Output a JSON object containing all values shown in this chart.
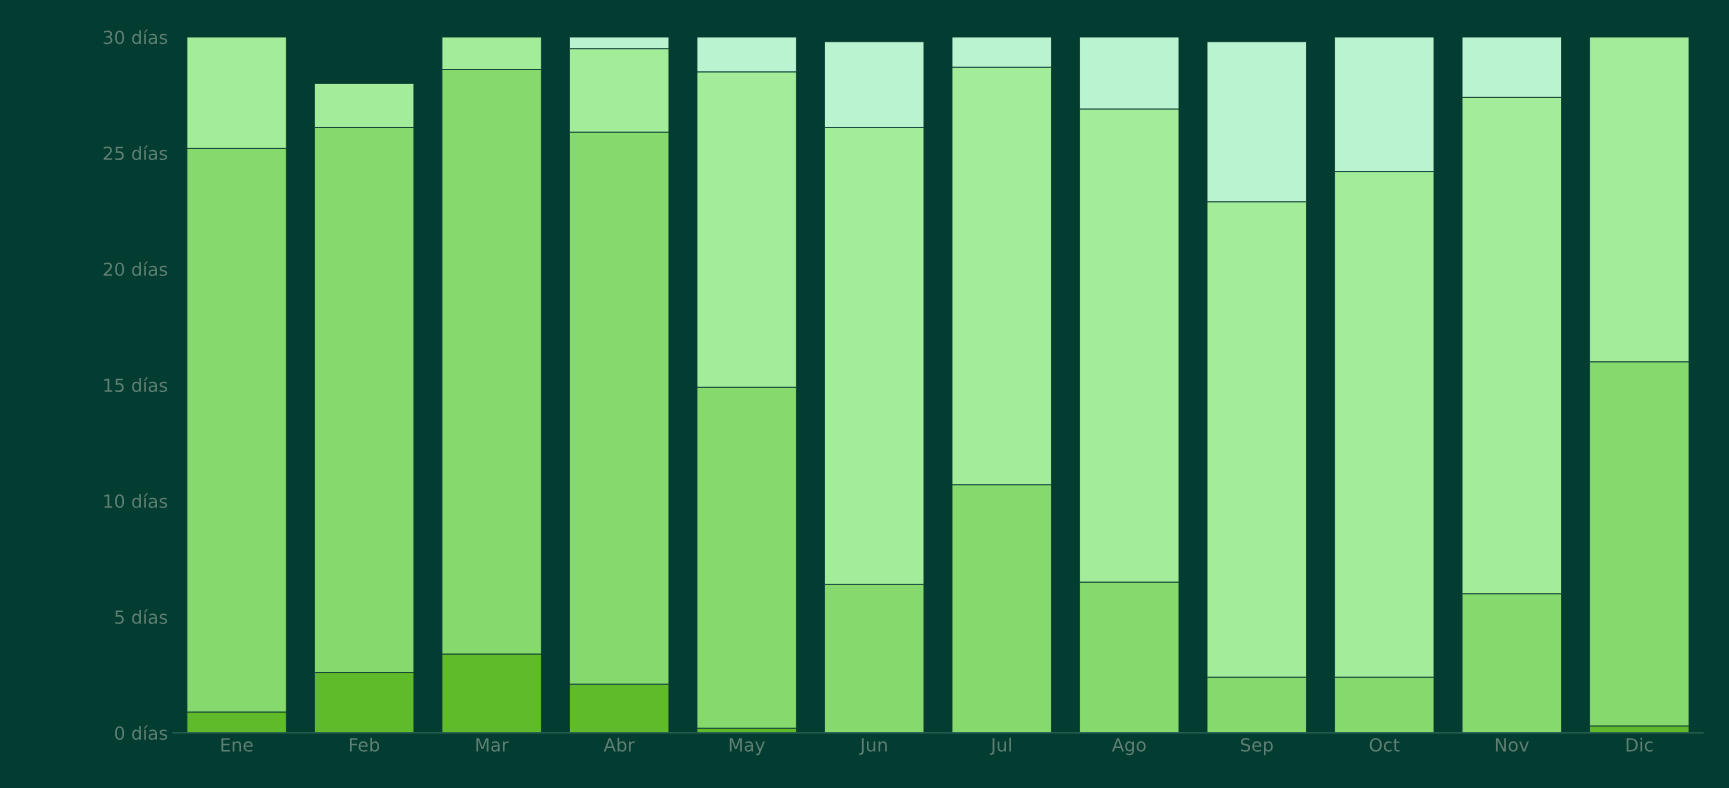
{
  "chart_data": {
    "type": "bar",
    "stacked": true,
    "categories": [
      "Ene",
      "Feb",
      "Mar",
      "Abr",
      "May",
      "Jun",
      "Jul",
      "Ago",
      "Sep",
      "Oct",
      "Nov",
      "Dic"
    ],
    "series": [
      {
        "color": "#60bb2a",
        "values": [
          0.9,
          2.6,
          3.4,
          2.1,
          0.2,
          0,
          0,
          0,
          0,
          0,
          0,
          0.3
        ]
      },
      {
        "color": "#86d96c",
        "values": [
          24.3,
          23.5,
          25.2,
          23.8,
          14.7,
          6.4,
          10.7,
          6.5,
          2.4,
          2.4,
          6.0,
          15.7
        ]
      },
      {
        "color": "#a3ec9a",
        "values": [
          4.8,
          1.9,
          1.4,
          3.6,
          13.6,
          19.7,
          18.0,
          20.4,
          20.5,
          21.8,
          21.4,
          14.0
        ]
      },
      {
        "color": "#baf3d0",
        "values": [
          0,
          0,
          0,
          0.5,
          1.5,
          3.7,
          1.3,
          3.1,
          6.9,
          5.8,
          2.6,
          0
        ]
      }
    ],
    "ylim": [
      0,
      30
    ],
    "yticks": [
      {
        "value": 0,
        "label": "0 días"
      },
      {
        "value": 5,
        "label": "5 días"
      },
      {
        "value": 10,
        "label": "10 días"
      },
      {
        "value": 15,
        "label": "15 días"
      },
      {
        "value": 20,
        "label": "20 días"
      },
      {
        "value": 25,
        "label": "25 días"
      },
      {
        "value": 30,
        "label": "30 días"
      }
    ],
    "grid": false,
    "legend": false
  }
}
